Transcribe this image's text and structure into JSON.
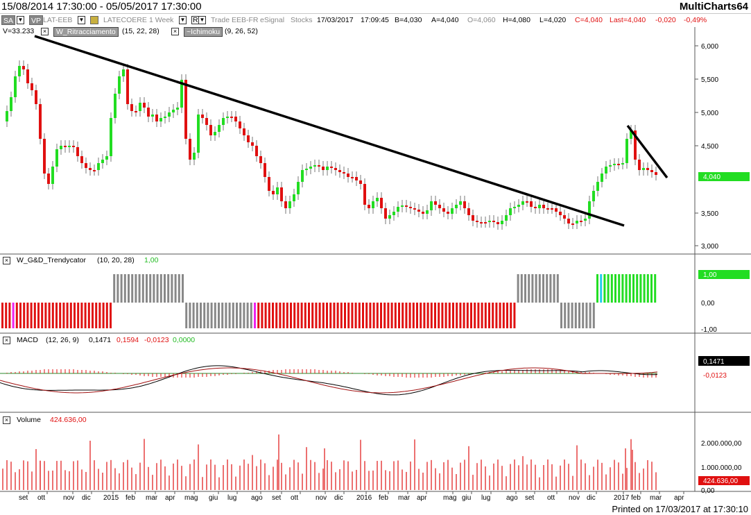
{
  "window": {
    "date_range": "15/08/2014 17:30:00 - 05/05/2017 17:30:00",
    "app_name": "MultiCharts64"
  },
  "toolbar": {
    "sa_label": "SA",
    "vp_label": "VP",
    "symbol": "LAT-EEB",
    "symbol_name": "LATECOERE",
    "interval": "1 Week",
    "r_label": "R",
    "feed": "Trade",
    "exchange": "EEB-FR",
    "provider": "eSignal",
    "category": "Stocks",
    "date": "17/03/2017",
    "time": "17:09:45",
    "bid": "B=4,030",
    "ask": "A=4,040",
    "open": "O=4,060",
    "high": "H=4,080",
    "low": "L=4,020",
    "close": "C=4,040",
    "last": "Last=4,040",
    "change": "-0,020",
    "change_pct": "-0,49%"
  },
  "price_pane": {
    "volume_label": "V=33.233",
    "indicator1_name": "W_Ritracciamento",
    "indicator1_params": "(15, 22, 28)",
    "indicator2_name": "~Ichimoku",
    "indicator2_params": "(9, 26, 52)",
    "axis_labels": [
      "6,000",
      "5,500",
      "5,000",
      "4,500",
      "3,500",
      "3,000"
    ],
    "last_price_tag": "4,040"
  },
  "trendy_pane": {
    "name": "W_G&D_Trendycator",
    "params": "(10, 20, 28)",
    "value": "1,00",
    "axis_labels": [
      "0,00",
      "-1,00"
    ],
    "value_tag": "1,00"
  },
  "macd_pane": {
    "name": "MACD",
    "params": "(12, 26, 9)",
    "macd": "0,1471",
    "signal": "0,1594",
    "hist": "-0,0123",
    "zero": "0,0000",
    "tag_macd": "0,1471",
    "tag_hist": "-0,0123"
  },
  "volume_pane": {
    "name": "Volume",
    "value": "424.636,00",
    "axis_labels": [
      "2.000.000,00",
      "1.000.000,00",
      "0,00"
    ],
    "value_tag": "424.636,00"
  },
  "x_axis": {
    "labels": [
      "set",
      "ott",
      "nov",
      "dic",
      "2015",
      "feb",
      "mar",
      "apr",
      "mag",
      "giu",
      "lug",
      "ago",
      "set",
      "ott",
      "nov",
      "dic",
      "2016",
      "feb",
      "mar",
      "apr",
      "mag",
      "giu",
      "lug",
      "ago",
      "set",
      "ott",
      "nov",
      "dic",
      "2017",
      "feb",
      "mar",
      "apr"
    ]
  },
  "footer": {
    "printed": "Printed on 17/03/2017 at 17:30:10"
  },
  "colors": {
    "up": "#22dd22",
    "down": "#e01010",
    "neutral": "#888888",
    "magenta": "#ee22ee",
    "cyan": "#22ccee",
    "price_tag": "#22dd22",
    "volume_tag": "#e01010"
  }
}
